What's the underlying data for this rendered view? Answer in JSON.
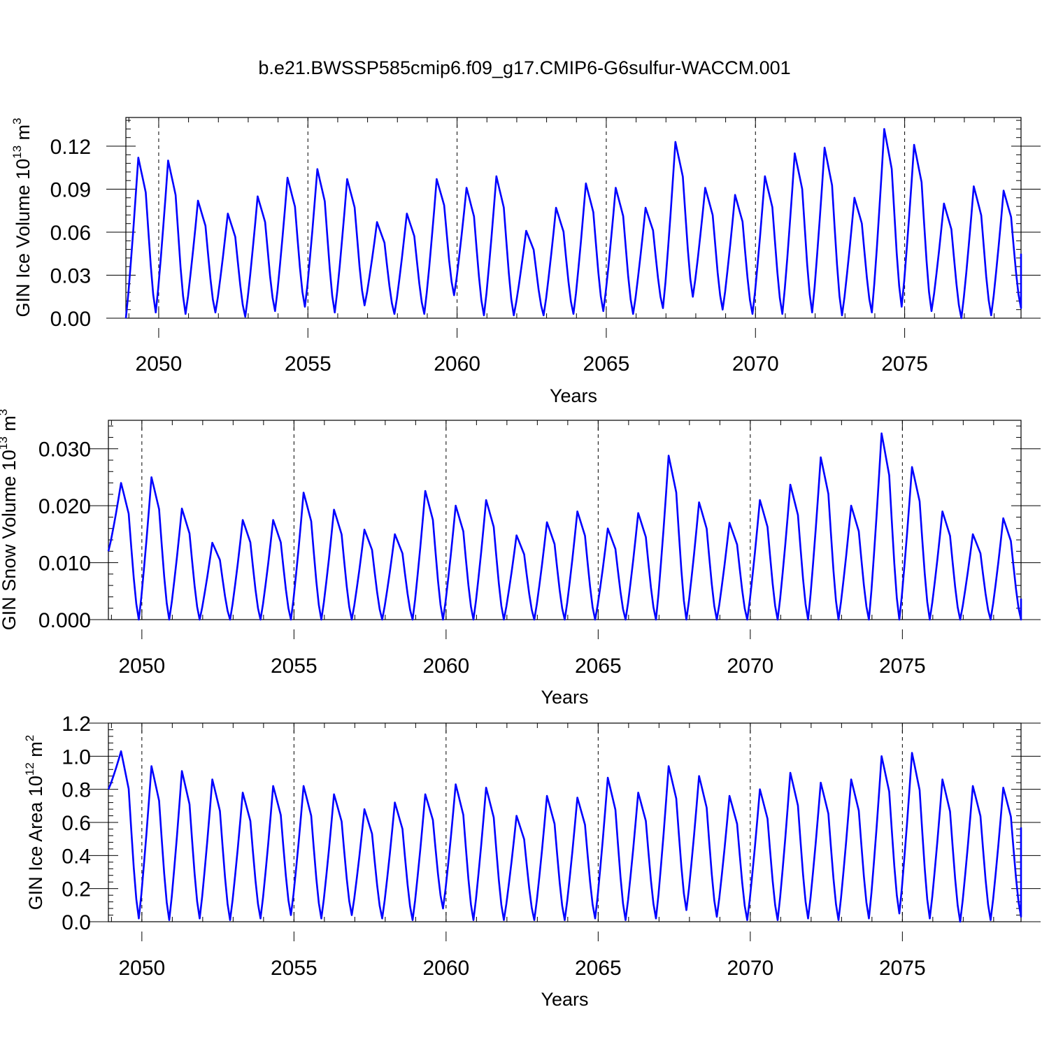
{
  "figure": {
    "title": "b.e21.BWSSP585cmip6.f09_g17.CMIP6-G6sulfur-WACCM.001"
  },
  "colors": {
    "series": "#0000ff",
    "axis": "#000000",
    "grid": "#000000"
  },
  "chart_data": [
    {
      "type": "line",
      "name": "ice-volume",
      "xlabel": "Years",
      "ylabel_main": "GIN Ice Volume 10",
      "ylabel_exp": "13",
      "ylabel_unit": " m",
      "ylabel_unit_exp": "3",
      "xlim": [
        2048.9,
        2078.9
      ],
      "ylim": [
        0,
        0.14
      ],
      "yticks": [
        0.0,
        0.03,
        0.06,
        0.09,
        0.12
      ],
      "ytick_labels": [
        "0.00",
        "0.03",
        "0.06",
        "0.09",
        "0.12"
      ],
      "xticks": [
        2050,
        2055,
        2060,
        2065,
        2070,
        2075
      ],
      "xtick_labels": [
        "2050",
        "2055",
        "2060",
        "2065",
        "2070",
        "2075"
      ],
      "grid": "vertical dashed at major x ticks",
      "seasonal_cycle": {
        "x_start": 2048.9,
        "minima": [
          0.0,
          0.004,
          0.003,
          0.004,
          0.001,
          0.005,
          0.008,
          0.004,
          0.009,
          0.003,
          0.003,
          0.016,
          0.002,
          0.002,
          0.002,
          0.003,
          0.005,
          0.003,
          0.007,
          0.015,
          0.006,
          0.003,
          0.003,
          0.004,
          0.002,
          0.004,
          0.008,
          0.005,
          0.0,
          0.002,
          0.007
        ],
        "maxima": [
          0.112,
          0.11,
          0.082,
          0.073,
          0.085,
          0.098,
          0.104,
          0.097,
          0.067,
          0.073,
          0.097,
          0.091,
          0.099,
          0.061,
          0.077,
          0.094,
          0.091,
          0.077,
          0.123,
          0.091,
          0.086,
          0.099,
          0.115,
          0.119,
          0.084,
          0.132,
          0.121,
          0.08,
          0.092,
          0.089
        ],
        "end_value": 0.045
      }
    },
    {
      "type": "line",
      "name": "snow-volume",
      "xlabel": "Years",
      "ylabel_main": "GIN Snow Volume 10",
      "ylabel_exp": "13",
      "ylabel_unit": " m",
      "ylabel_unit_exp": "3",
      "xlim": [
        2048.9,
        2078.9
      ],
      "ylim": [
        0,
        0.035
      ],
      "yticks": [
        0.0,
        0.01,
        0.02,
        0.03
      ],
      "ytick_labels": [
        "0.000",
        "0.010",
        "0.020",
        "0.030"
      ],
      "xticks": [
        2050,
        2055,
        2060,
        2065,
        2070,
        2075
      ],
      "xtick_labels": [
        "2050",
        "2055",
        "2060",
        "2065",
        "2070",
        "2075"
      ],
      "grid": "vertical dashed at major x ticks",
      "seasonal_cycle": {
        "x_start": 2048.9,
        "minima": [
          0.012,
          0.0,
          0.0,
          0.0,
          0.0,
          0.0,
          0.0,
          0.0,
          0.0,
          0.0,
          0.0,
          0.0,
          0.0,
          0.0,
          0.0,
          0.0,
          0.0,
          0.0,
          0.0,
          0.0,
          0.0,
          0.0,
          0.0,
          0.0,
          0.0,
          0.0,
          0.0,
          0.0,
          0.0,
          0.0,
          0.0
        ],
        "maxima": [
          0.024,
          0.025,
          0.0195,
          0.0135,
          0.0175,
          0.0175,
          0.0223,
          0.0193,
          0.0158,
          0.015,
          0.0226,
          0.02,
          0.021,
          0.0148,
          0.0171,
          0.019,
          0.016,
          0.0187,
          0.0288,
          0.0206,
          0.017,
          0.021,
          0.0237,
          0.0285,
          0.02,
          0.0327,
          0.0268,
          0.019,
          0.015,
          0.0178
        ],
        "end_value": 0.0037
      }
    },
    {
      "type": "line",
      "name": "ice-area",
      "xlabel": "Years",
      "ylabel_main": "GIN Ice Area 10",
      "ylabel_exp": "12",
      "ylabel_unit": " m",
      "ylabel_unit_exp": "2",
      "xlim": [
        2048.9,
        2078.9
      ],
      "ylim": [
        0,
        1.2
      ],
      "yticks": [
        0.0,
        0.2,
        0.4,
        0.6,
        0.8,
        1.0,
        1.2
      ],
      "ytick_labels": [
        "0.0",
        "0.2",
        "0.4",
        "0.6",
        "0.8",
        "1.0",
        "1.2"
      ],
      "xticks": [
        2050,
        2055,
        2060,
        2065,
        2070,
        2075
      ],
      "xtick_labels": [
        "2050",
        "2055",
        "2060",
        "2065",
        "2070",
        "2075"
      ],
      "grid": "vertical dashed at major x ticks",
      "seasonal_cycle": {
        "x_start": 2048.9,
        "minima": [
          0.8,
          0.02,
          0.01,
          0.02,
          0.01,
          0.02,
          0.04,
          0.02,
          0.04,
          0.02,
          0.01,
          0.08,
          0.01,
          0.01,
          0.01,
          0.01,
          0.02,
          0.01,
          0.02,
          0.07,
          0.03,
          0.01,
          0.01,
          0.02,
          0.01,
          0.02,
          0.05,
          0.02,
          0.0,
          0.01,
          0.03
        ],
        "maxima": [
          1.03,
          0.94,
          0.91,
          0.86,
          0.78,
          0.82,
          0.82,
          0.77,
          0.68,
          0.72,
          0.77,
          0.83,
          0.81,
          0.64,
          0.76,
          0.75,
          0.87,
          0.78,
          0.94,
          0.88,
          0.76,
          0.8,
          0.9,
          0.84,
          0.86,
          1.0,
          1.02,
          0.86,
          0.82,
          0.81
        ],
        "end_value": 0.57
      }
    }
  ]
}
